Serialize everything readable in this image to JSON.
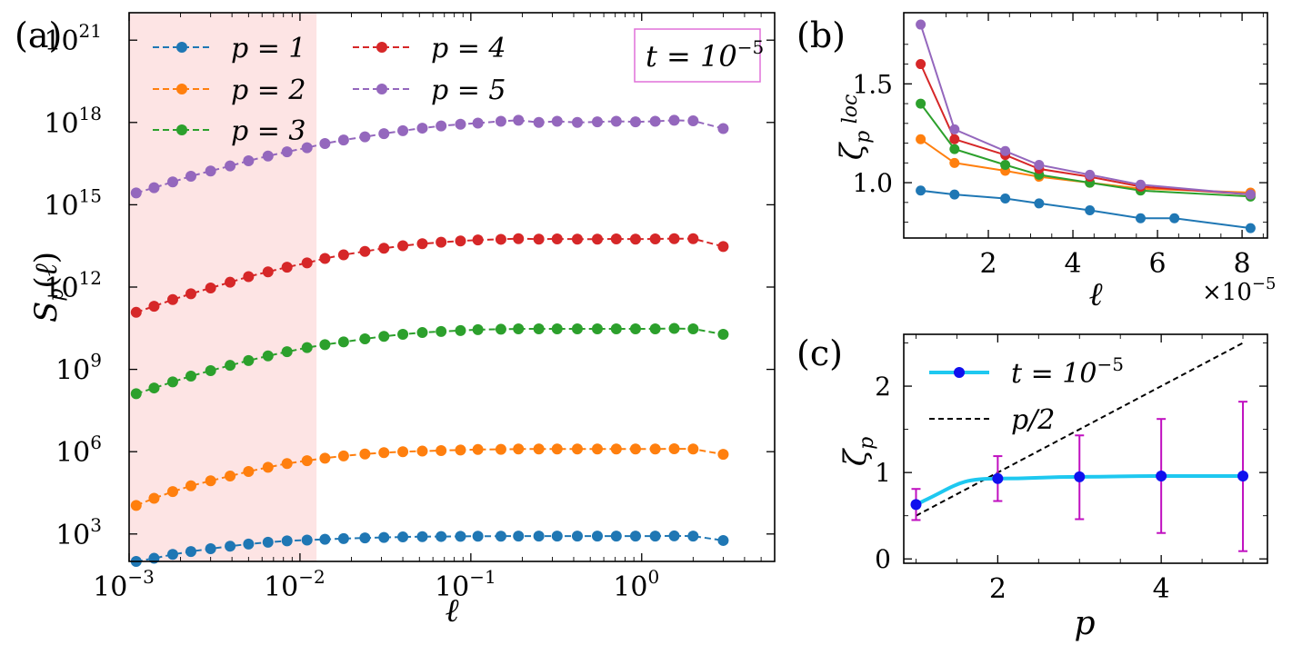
{
  "chart_data": [
    {
      "panel": "(a)",
      "type": "line",
      "xscale": "log",
      "yscale": "log",
      "xlabel": "ℓ",
      "ylabel": "S_p(ℓ)",
      "xlim": [
        0.001,
        6.0
      ],
      "ylim": [
        100,
        1e+22
      ],
      "xticks": [
        0.001,
        0.01,
        0.1,
        1
      ],
      "xtick_labels": [
        {
          "base": "10",
          "exp": "−3"
        },
        {
          "base": "10",
          "exp": "−2"
        },
        {
          "base": "10",
          "exp": "−1"
        },
        {
          "base": "10",
          "exp": "0"
        }
      ],
      "yticks": [
        1000.0,
        1000000.0,
        1000000000.0,
        1000000000000.0,
        1000000000000000.0,
        1e+18,
        1e+21
      ],
      "ytick_labels": [
        {
          "base": "10",
          "exp": "3"
        },
        {
          "base": "10",
          "exp": "6"
        },
        {
          "base": "10",
          "exp": "9"
        },
        {
          "base": "10",
          "exp": "12"
        },
        {
          "base": "10",
          "exp": "15"
        },
        {
          "base": "10",
          "exp": "18"
        },
        {
          "base": "10",
          "exp": "21"
        }
      ],
      "shaded_region": {
        "x": [
          0.001,
          0.0125
        ],
        "color": "#fde4e4"
      },
      "annotation": {
        "text": "t = 10",
        "exp": "−5",
        "border_color": "#e070d8"
      },
      "legend_position": "top-left",
      "x": [
        0.0011,
        0.0014,
        0.0018,
        0.0023,
        0.003,
        0.0039,
        0.005,
        0.0065,
        0.0084,
        0.011,
        0.014,
        0.018,
        0.024,
        0.031,
        0.04,
        0.052,
        0.067,
        0.087,
        0.11,
        0.15,
        0.19,
        0.25,
        0.32,
        0.42,
        0.55,
        0.71,
        0.92,
        1.2,
        1.55,
        2.0,
        3.0
      ],
      "series": [
        {
          "name": "p = 1",
          "color": "#1f77b4",
          "values": [
            100.0,
            130.0,
            180.0,
            230.0,
            290.0,
            360.0,
            430.0,
            500.0,
            560.0,
            600.0,
            640.0,
            680.0,
            720.0,
            750.0,
            780.0,
            800.0,
            810.0,
            820.0,
            830.0,
            830.0,
            840.0,
            840.0,
            840.0,
            840.0,
            840.0,
            840.0,
            840.0,
            840.0,
            850.0,
            840.0,
            580.0
          ]
        },
        {
          "name": "p = 2",
          "color": "#ff7f0e",
          "values": [
            11000.0,
            20000.0,
            35000.0,
            57000.0,
            87000.0,
            130000.0,
            190000.0,
            270000.0,
            370000.0,
            470000.0,
            580000.0,
            700000.0,
            820000.0,
            920000.0,
            1000000.0,
            1050000.0,
            1100000.0,
            1150000.0,
            1200000.0,
            1220000.0,
            1250000.0,
            1250000.0,
            1250000.0,
            1250000.0,
            1250000.0,
            1250000.0,
            1250000.0,
            1250000.0,
            1280000.0,
            1250000.0,
            800000.0
          ]
        },
        {
          "name": "p = 3",
          "color": "#2ca02c",
          "values": [
            130000000.0,
            210000000.0,
            350000000.0,
            570000000.0,
            900000000.0,
            1400000000.0,
            2100000000.0,
            3100000000.0,
            4400000000.0,
            6200000000.0,
            8000000000.0,
            10000000000.0,
            13000000000.0,
            16000000000.0,
            19000000000.0,
            22000000000.0,
            24000000000.0,
            26000000000.0,
            28000000000.0,
            29000000000.0,
            30000000000.0,
            30000000000.0,
            30000000000.0,
            30000000000.0,
            30000000000.0,
            30000000000.0,
            30000000000.0,
            30000000000.0,
            31000000000.0,
            30000000000.0,
            19000000000.0
          ]
        },
        {
          "name": "p = 4",
          "color": "#d62728",
          "values": [
            120000000000.0,
            200000000000.0,
            350000000000.0,
            570000000000.0,
            930000000000.0,
            1500000000000.0,
            2400000000000.0,
            3600000000000.0,
            5300000000000.0,
            7600000000000.0,
            11000000000000.0,
            15000000000000.0,
            20000000000000.0,
            26000000000000.0,
            32000000000000.0,
            38000000000000.0,
            43000000000000.0,
            48000000000000.0,
            52000000000000.0,
            55000000000000.0,
            58000000000000.0,
            56000000000000.0,
            57000000000000.0,
            56000000000000.0,
            56000000000000.0,
            57000000000000.0,
            56000000000000.0,
            57000000000000.0,
            58000000000000.0,
            58000000000000.0,
            30000000000000.0
          ]
        },
        {
          "name": "p = 5",
          "color": "#9467bd",
          "values": [
            2700000000000000.0,
            4200000000000000.0,
            6800000000000000.0,
            1.1e+16,
            1.7e+16,
            2.6e+16,
            4e+16,
            6e+16,
            8.5e+16,
            1.2e+17,
            1.7e+17,
            2.3e+17,
            3e+17,
            3.9e+17,
            5e+17,
            6.2e+17,
            7.5e+17,
            8.6e+17,
            9.5e+17,
            1.1e+18,
            1.2e+18,
            1e+18,
            1.1e+18,
            1e+18,
            1.05e+18,
            1.1e+18,
            1.05e+18,
            1.1e+18,
            1.2e+18,
            1.15e+18,
            6e+17
          ]
        }
      ]
    },
    {
      "panel": "(b)",
      "type": "line",
      "xlabel": "ℓ",
      "ylabel": "ζ_p^loc",
      "xlim": [
        0.0,
        8.6
      ],
      "ylim": [
        0.72,
        1.86
      ],
      "xticks": [
        2,
        4,
        6,
        8
      ],
      "yticks": [
        1.0,
        1.5
      ],
      "ytick_labels": [
        "1.0",
        "1.5"
      ],
      "x_multiplier": {
        "text": "×10",
        "exp": "−5"
      },
      "x": [
        0.4,
        1.2,
        2.4,
        3.2,
        4.4,
        5.6,
        6.4,
        8.2,
        8.3
      ],
      "series": [
        {
          "name": "p = 1",
          "color": "#1f77b4",
          "values": [
            null,
            null,
            null,
            null,
            null,
            null,
            null,
            null,
            null
          ]
        },
        {
          "name": "p = 1",
          "color": "#1f77b4",
          "x": [
            0.4,
            1.2,
            2.4,
            3.2,
            4.4,
            5.6,
            6.4,
            8.2
          ],
          "values": [
            0.96,
            0.94,
            0.92,
            0.895,
            0.86,
            0.82,
            0.82,
            0.77
          ]
        },
        {
          "name": "p = 2",
          "color": "#ff7f0e",
          "x": [
            0.4,
            1.2,
            2.4,
            3.2,
            4.4,
            5.6,
            8.2
          ],
          "values": [
            1.22,
            1.1,
            1.06,
            1.03,
            1.0,
            0.97,
            0.95
          ]
        },
        {
          "name": "p = 3",
          "color": "#2ca02c",
          "x": [
            0.4,
            1.2,
            2.4,
            3.2,
            4.4,
            5.6,
            8.2
          ],
          "values": [
            1.4,
            1.17,
            1.09,
            1.04,
            1.0,
            0.96,
            0.93
          ]
        },
        {
          "name": "p = 4",
          "color": "#d62728",
          "x": [
            0.4,
            1.2,
            2.4,
            3.2,
            4.4,
            5.6,
            8.2
          ],
          "values": [
            1.6,
            1.22,
            1.14,
            1.07,
            1.03,
            0.98,
            0.94
          ]
        },
        {
          "name": "p = 5",
          "color": "#9467bd",
          "x": [
            0.4,
            1.2,
            2.4,
            3.2,
            4.4,
            5.6,
            8.2
          ],
          "values": [
            1.8,
            1.27,
            1.16,
            1.09,
            1.04,
            0.99,
            0.94
          ]
        }
      ]
    },
    {
      "panel": "(c)",
      "type": "line",
      "xlabel": "p",
      "ylabel": "ζ_p",
      "xlim": [
        0.85,
        5.3
      ],
      "ylim": [
        -0.05,
        2.6
      ],
      "xticks": [
        2,
        4
      ],
      "yticks": [
        0,
        1,
        2
      ],
      "ytick_labels": [
        "0",
        "1",
        "2"
      ],
      "legend_position": "top-left",
      "series": [
        {
          "name": "t = 10",
          "exp": "−5",
          "color": "#1ec8f0",
          "marker_color": "#1010ee",
          "x": [
            1,
            2,
            3,
            4,
            5
          ],
          "values": [
            0.63,
            0.93,
            0.95,
            0.96,
            0.96
          ],
          "err_low": [
            0.45,
            0.67,
            0.46,
            0.3,
            0.09
          ],
          "err_high": [
            0.81,
            1.19,
            1.43,
            1.62,
            1.82
          ],
          "err_color": "#c010c0"
        },
        {
          "name": "p/2",
          "color": "#000000",
          "style": "dashed",
          "x": [
            1,
            5
          ],
          "values": [
            0.5,
            2.5
          ]
        }
      ]
    }
  ]
}
